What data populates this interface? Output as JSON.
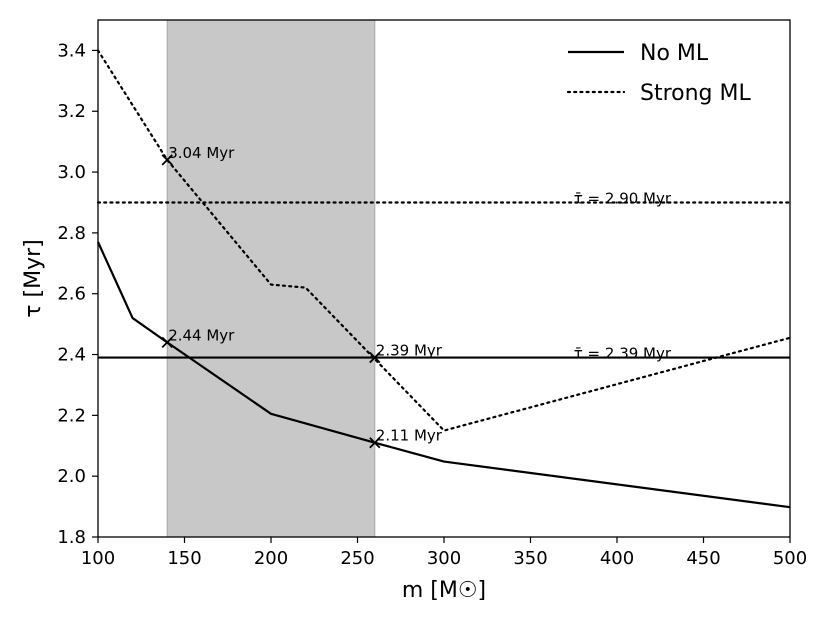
{
  "chart_data": {
    "type": "line",
    "xlabel": "m [M☉]",
    "ylabel": "τ [Myr]",
    "xlim": [
      100,
      500
    ],
    "ylim": [
      1.8,
      3.5
    ],
    "xticks": [
      100,
      150,
      200,
      250,
      300,
      350,
      400,
      450,
      500
    ],
    "yticks": [
      1.8,
      2.0,
      2.2,
      2.4,
      2.6,
      2.8,
      3.0,
      3.2,
      3.4
    ],
    "shaded_region": {
      "x": [
        140,
        260
      ],
      "color": "#c8c8c8"
    },
    "series": [
      {
        "name": "No ML",
        "style": "solid",
        "x": [
          100,
          120,
          140,
          200,
          260,
          300,
          500
        ],
        "y": [
          2.77,
          2.52,
          2.44,
          2.205,
          2.11,
          2.048,
          1.898
        ]
      },
      {
        "name": "Strong ML",
        "style": "dotted",
        "x": [
          100,
          140,
          200,
          220,
          300,
          500
        ],
        "y": [
          3.4,
          3.04,
          2.63,
          2.62,
          2.15,
          2.455
        ]
      }
    ],
    "hlines": [
      {
        "y": 2.9,
        "style": "dotted",
        "label": "τ̄ = 2.90 Myr",
        "label_x": 375
      },
      {
        "y": 2.39,
        "style": "solid",
        "label": "τ̄ = 2.39 Myr",
        "label_x": 375
      }
    ],
    "markers": [
      {
        "x": 140,
        "y": 3.04,
        "label": "3.04 Myr"
      },
      {
        "x": 140,
        "y": 2.44,
        "label": "2.44 Myr"
      },
      {
        "x": 260,
        "y": 2.39,
        "label": "2.39 Myr"
      },
      {
        "x": 260,
        "y": 2.11,
        "label": "2.11 Myr"
      }
    ],
    "legend": {
      "position": "top-right",
      "entries": [
        "No ML",
        "Strong ML"
      ]
    }
  }
}
